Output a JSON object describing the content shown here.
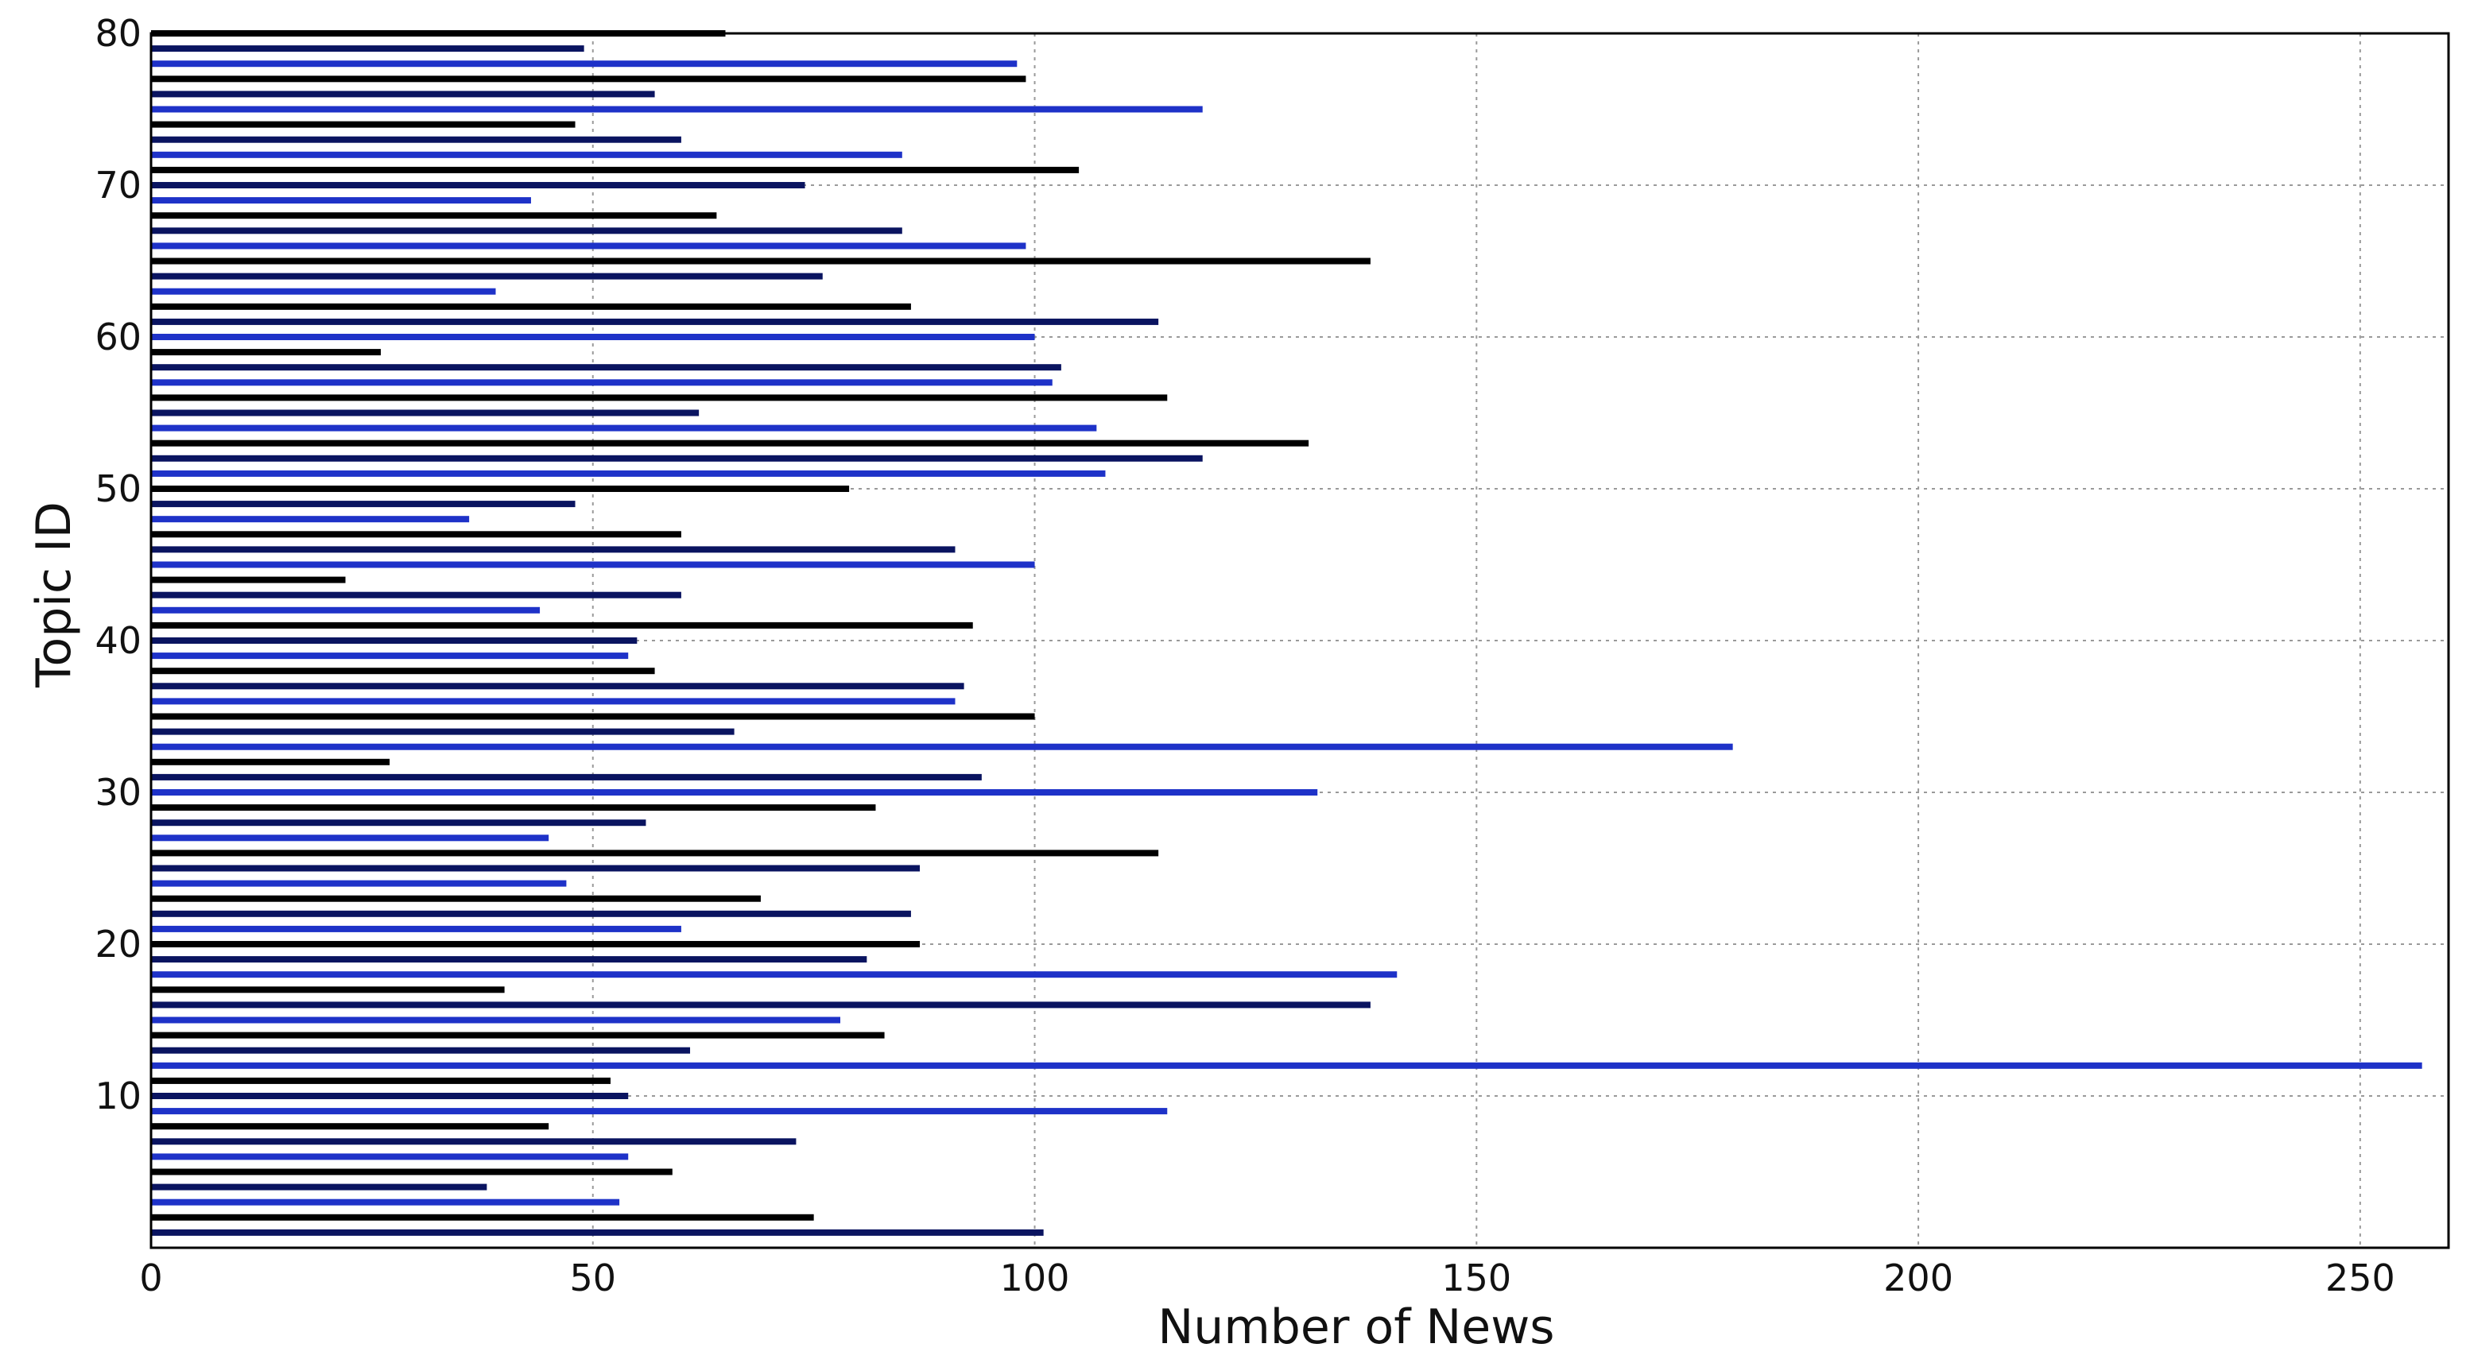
{
  "chart_data": {
    "type": "bar",
    "orientation": "horizontal",
    "title": "",
    "xlabel": "Number of News",
    "ylabel": "Topic  ID",
    "xlim": [
      0,
      260
    ],
    "ylim": [
      0,
      80
    ],
    "grid": true,
    "x_ticks": [
      "0",
      "50",
      "100",
      "150",
      "200",
      "250"
    ],
    "y_ticks": [
      "10",
      "20",
      "30",
      "40",
      "50",
      "60",
      "70",
      "80"
    ],
    "categories": [
      1,
      2,
      3,
      4,
      5,
      6,
      7,
      8,
      9,
      10,
      11,
      12,
      13,
      14,
      15,
      16,
      17,
      18,
      19,
      20,
      21,
      22,
      23,
      24,
      25,
      26,
      27,
      28,
      29,
      30,
      31,
      32,
      33,
      34,
      35,
      36,
      37,
      38,
      39,
      40,
      41,
      42,
      43,
      44,
      45,
      46,
      47,
      48,
      49,
      50,
      51,
      52,
      53,
      54,
      55,
      56,
      57,
      58,
      59,
      60,
      61,
      62,
      63,
      64,
      65,
      66,
      67,
      68,
      69,
      70,
      71,
      72,
      73,
      74,
      75,
      76,
      77,
      78,
      79,
      80
    ],
    "values": [
      101,
      75,
      53,
      38,
      59,
      54,
      73,
      45,
      115,
      54,
      52,
      257,
      61,
      83,
      78,
      138,
      40,
      141,
      81,
      87,
      60,
      86,
      69,
      47,
      87,
      114,
      45,
      56,
      82,
      132,
      94,
      27,
      179,
      66,
      100,
      91,
      92,
      57,
      54,
      55,
      93,
      44,
      60,
      22,
      100,
      91,
      60,
      36,
      48,
      79,
      108,
      119,
      131,
      107,
      62,
      115,
      102,
      103,
      26,
      100,
      114,
      86,
      39,
      76,
      138,
      99,
      85,
      64,
      43,
      74,
      105,
      85,
      60,
      48,
      119,
      57,
      99,
      98,
      49,
      65
    ],
    "colors": [
      "#0a1460",
      "#000000",
      "#1e32c8"
    ]
  }
}
